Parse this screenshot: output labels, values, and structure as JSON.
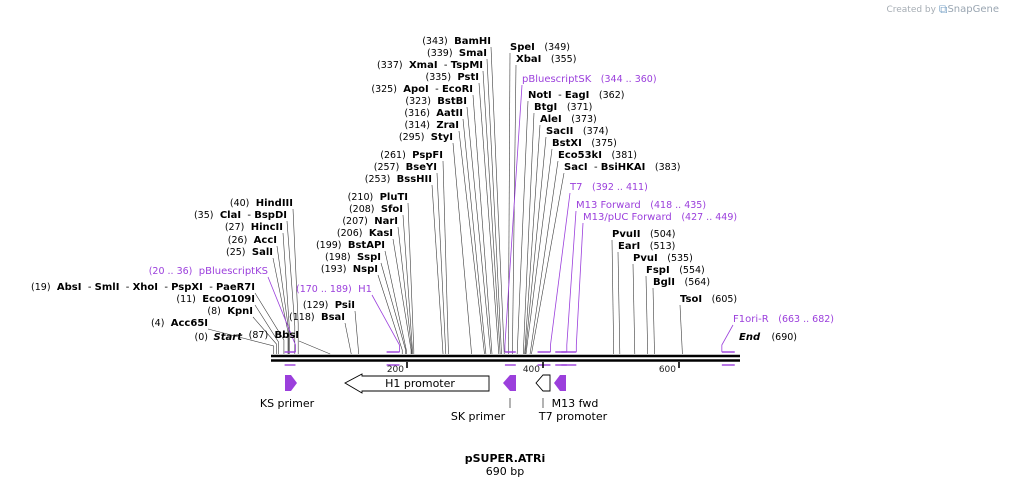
{
  "credit": {
    "prefix": "Created by",
    "brand": "SnapGene"
  },
  "map": {
    "name": "pSUPER.ATRi",
    "length_label": "690 bp",
    "length": 690
  },
  "ticks": [
    "200",
    "400",
    "600"
  ],
  "ends": {
    "start": "Start",
    "start_pos": "(0)",
    "end": "End",
    "end_pos": "(690)"
  },
  "sites": [
    {
      "pos": "(4)",
      "names": [
        "Acc65I"
      ]
    },
    {
      "pos": "(8)",
      "names": [
        "KpnI"
      ]
    },
    {
      "pos": "(11)",
      "names": [
        "EcoO109I"
      ]
    },
    {
      "pos": "(19)",
      "names": [
        "AbsI",
        "SmlI",
        "XhoI",
        "PspXI",
        "PaeR7I"
      ]
    },
    {
      "pos": "(25)",
      "names": [
        "SalI"
      ]
    },
    {
      "pos": "(26)",
      "names": [
        "AccI"
      ]
    },
    {
      "pos": "(27)",
      "names": [
        "HincII"
      ]
    },
    {
      "pos": "(35)",
      "names": [
        "ClaI",
        "BspDI"
      ]
    },
    {
      "pos": "(40)",
      "names": [
        "HindIII"
      ]
    },
    {
      "pos": "(87)",
      "names": [
        "BbsI"
      ]
    },
    {
      "pos": "(118)",
      "names": [
        "BsaI"
      ]
    },
    {
      "pos": "(129)",
      "names": [
        "PsiI"
      ]
    },
    {
      "pos": "(193)",
      "names": [
        "NspI"
      ]
    },
    {
      "pos": "(198)",
      "names": [
        "SspI"
      ]
    },
    {
      "pos": "(199)",
      "names": [
        "BstAPI"
      ]
    },
    {
      "pos": "(206)",
      "names": [
        "KasI"
      ]
    },
    {
      "pos": "(207)",
      "names": [
        "NarI"
      ]
    },
    {
      "pos": "(208)",
      "names": [
        "SfoI"
      ]
    },
    {
      "pos": "(210)",
      "names": [
        "PluTI"
      ]
    },
    {
      "pos": "(253)",
      "names": [
        "BssHII"
      ]
    },
    {
      "pos": "(257)",
      "names": [
        "BseYI"
      ]
    },
    {
      "pos": "(261)",
      "names": [
        "PspFI"
      ]
    },
    {
      "pos": "(295)",
      "names": [
        "StyI"
      ]
    },
    {
      "pos": "(314)",
      "names": [
        "ZraI"
      ]
    },
    {
      "pos": "(316)",
      "names": [
        "AatII"
      ]
    },
    {
      "pos": "(323)",
      "names": [
        "BstBI"
      ]
    },
    {
      "pos": "(325)",
      "names": [
        "ApoI",
        "EcoRI"
      ]
    },
    {
      "pos": "(335)",
      "names": [
        "PstI"
      ]
    },
    {
      "pos": "(337)",
      "names": [
        "XmaI",
        "TspMI"
      ]
    },
    {
      "pos": "(339)",
      "names": [
        "SmaI"
      ]
    },
    {
      "pos": "(343)",
      "names": [
        "BamHI"
      ]
    },
    {
      "pos": "(349)",
      "names": [
        "SpeI"
      ]
    },
    {
      "pos": "(355)",
      "names": [
        "XbaI"
      ]
    },
    {
      "pos": "(362)",
      "names": [
        "NotI",
        "EagI"
      ]
    },
    {
      "pos": "(371)",
      "names": [
        "BtgI"
      ]
    },
    {
      "pos": "(373)",
      "names": [
        "AleI"
      ]
    },
    {
      "pos": "(374)",
      "names": [
        "SacII"
      ]
    },
    {
      "pos": "(375)",
      "names": [
        "BstXI"
      ]
    },
    {
      "pos": "(381)",
      "names": [
        "Eco53kI"
      ]
    },
    {
      "pos": "(383)",
      "names": [
        "SacI",
        "BsiHKAI"
      ]
    },
    {
      "pos": "(504)",
      "names": [
        "PvuII"
      ]
    },
    {
      "pos": "(513)",
      "names": [
        "EarI"
      ]
    },
    {
      "pos": "(535)",
      "names": [
        "PvuI"
      ]
    },
    {
      "pos": "(554)",
      "names": [
        "FspI"
      ]
    },
    {
      "pos": "(564)",
      "names": [
        "BglI"
      ]
    },
    {
      "pos": "(605)",
      "names": [
        "TsoI"
      ]
    }
  ],
  "primers": [
    {
      "name": "pBluescriptKS",
      "range": "(20 .. 36)"
    },
    {
      "name": "H1",
      "range": "(170 .. 189)"
    },
    {
      "name": "pBluescriptSK",
      "range": "(344 .. 360)"
    },
    {
      "name": "T7",
      "range": "(392 .. 411)"
    },
    {
      "name": "M13 Forward",
      "range": "(418 .. 435)"
    },
    {
      "name": "M13/pUC Forward",
      "range": "(427 .. 449)"
    },
    {
      "name": "F1ori-R",
      "range": "(663 .. 682)"
    }
  ],
  "features": [
    {
      "name": "H1 promoter",
      "kind": "promoter"
    },
    {
      "name": "KS primer",
      "kind": "primer_bind"
    },
    {
      "name": "SK primer",
      "kind": "primer_bind"
    },
    {
      "name": "T7 promoter",
      "kind": "promoter"
    },
    {
      "name": "M13 fwd",
      "kind": "primer_bind"
    }
  ],
  "colors": {
    "primer": "#9b3fdc",
    "line": "#000000",
    "credit": "#a6adb4"
  }
}
